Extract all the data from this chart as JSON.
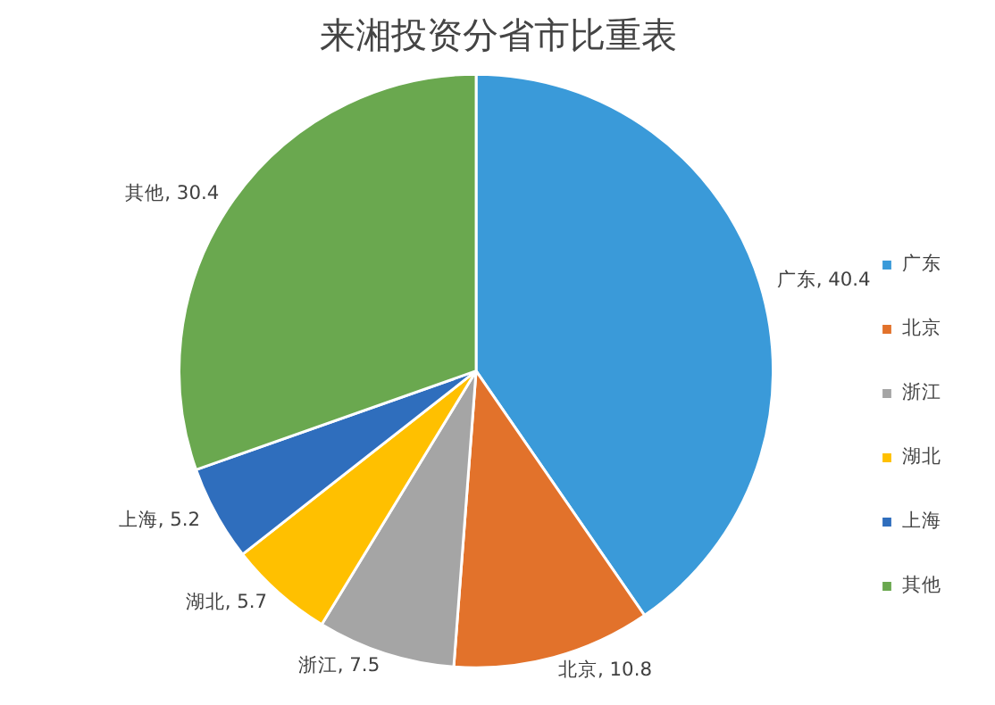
{
  "chart_data": {
    "type": "pie",
    "title": "来湘投资分省市比重表",
    "categories": [
      "广东",
      "北京",
      "浙江",
      "湖北",
      "上海",
      "其他"
    ],
    "values": [
      40.4,
      10.8,
      7.5,
      5.7,
      5.2,
      30.4
    ],
    "value_labels": [
      "广东, 40.4",
      "北京, 10.8",
      "浙江, 7.5",
      "湖北, 5.7",
      "上海, 5.2",
      "其他, 30.4"
    ],
    "colors": [
      "#3a9ad9",
      "#e2722b",
      "#a5a5a5",
      "#ffc000",
      "#2f6ebd",
      "#6aa84f"
    ],
    "legend": "right"
  }
}
